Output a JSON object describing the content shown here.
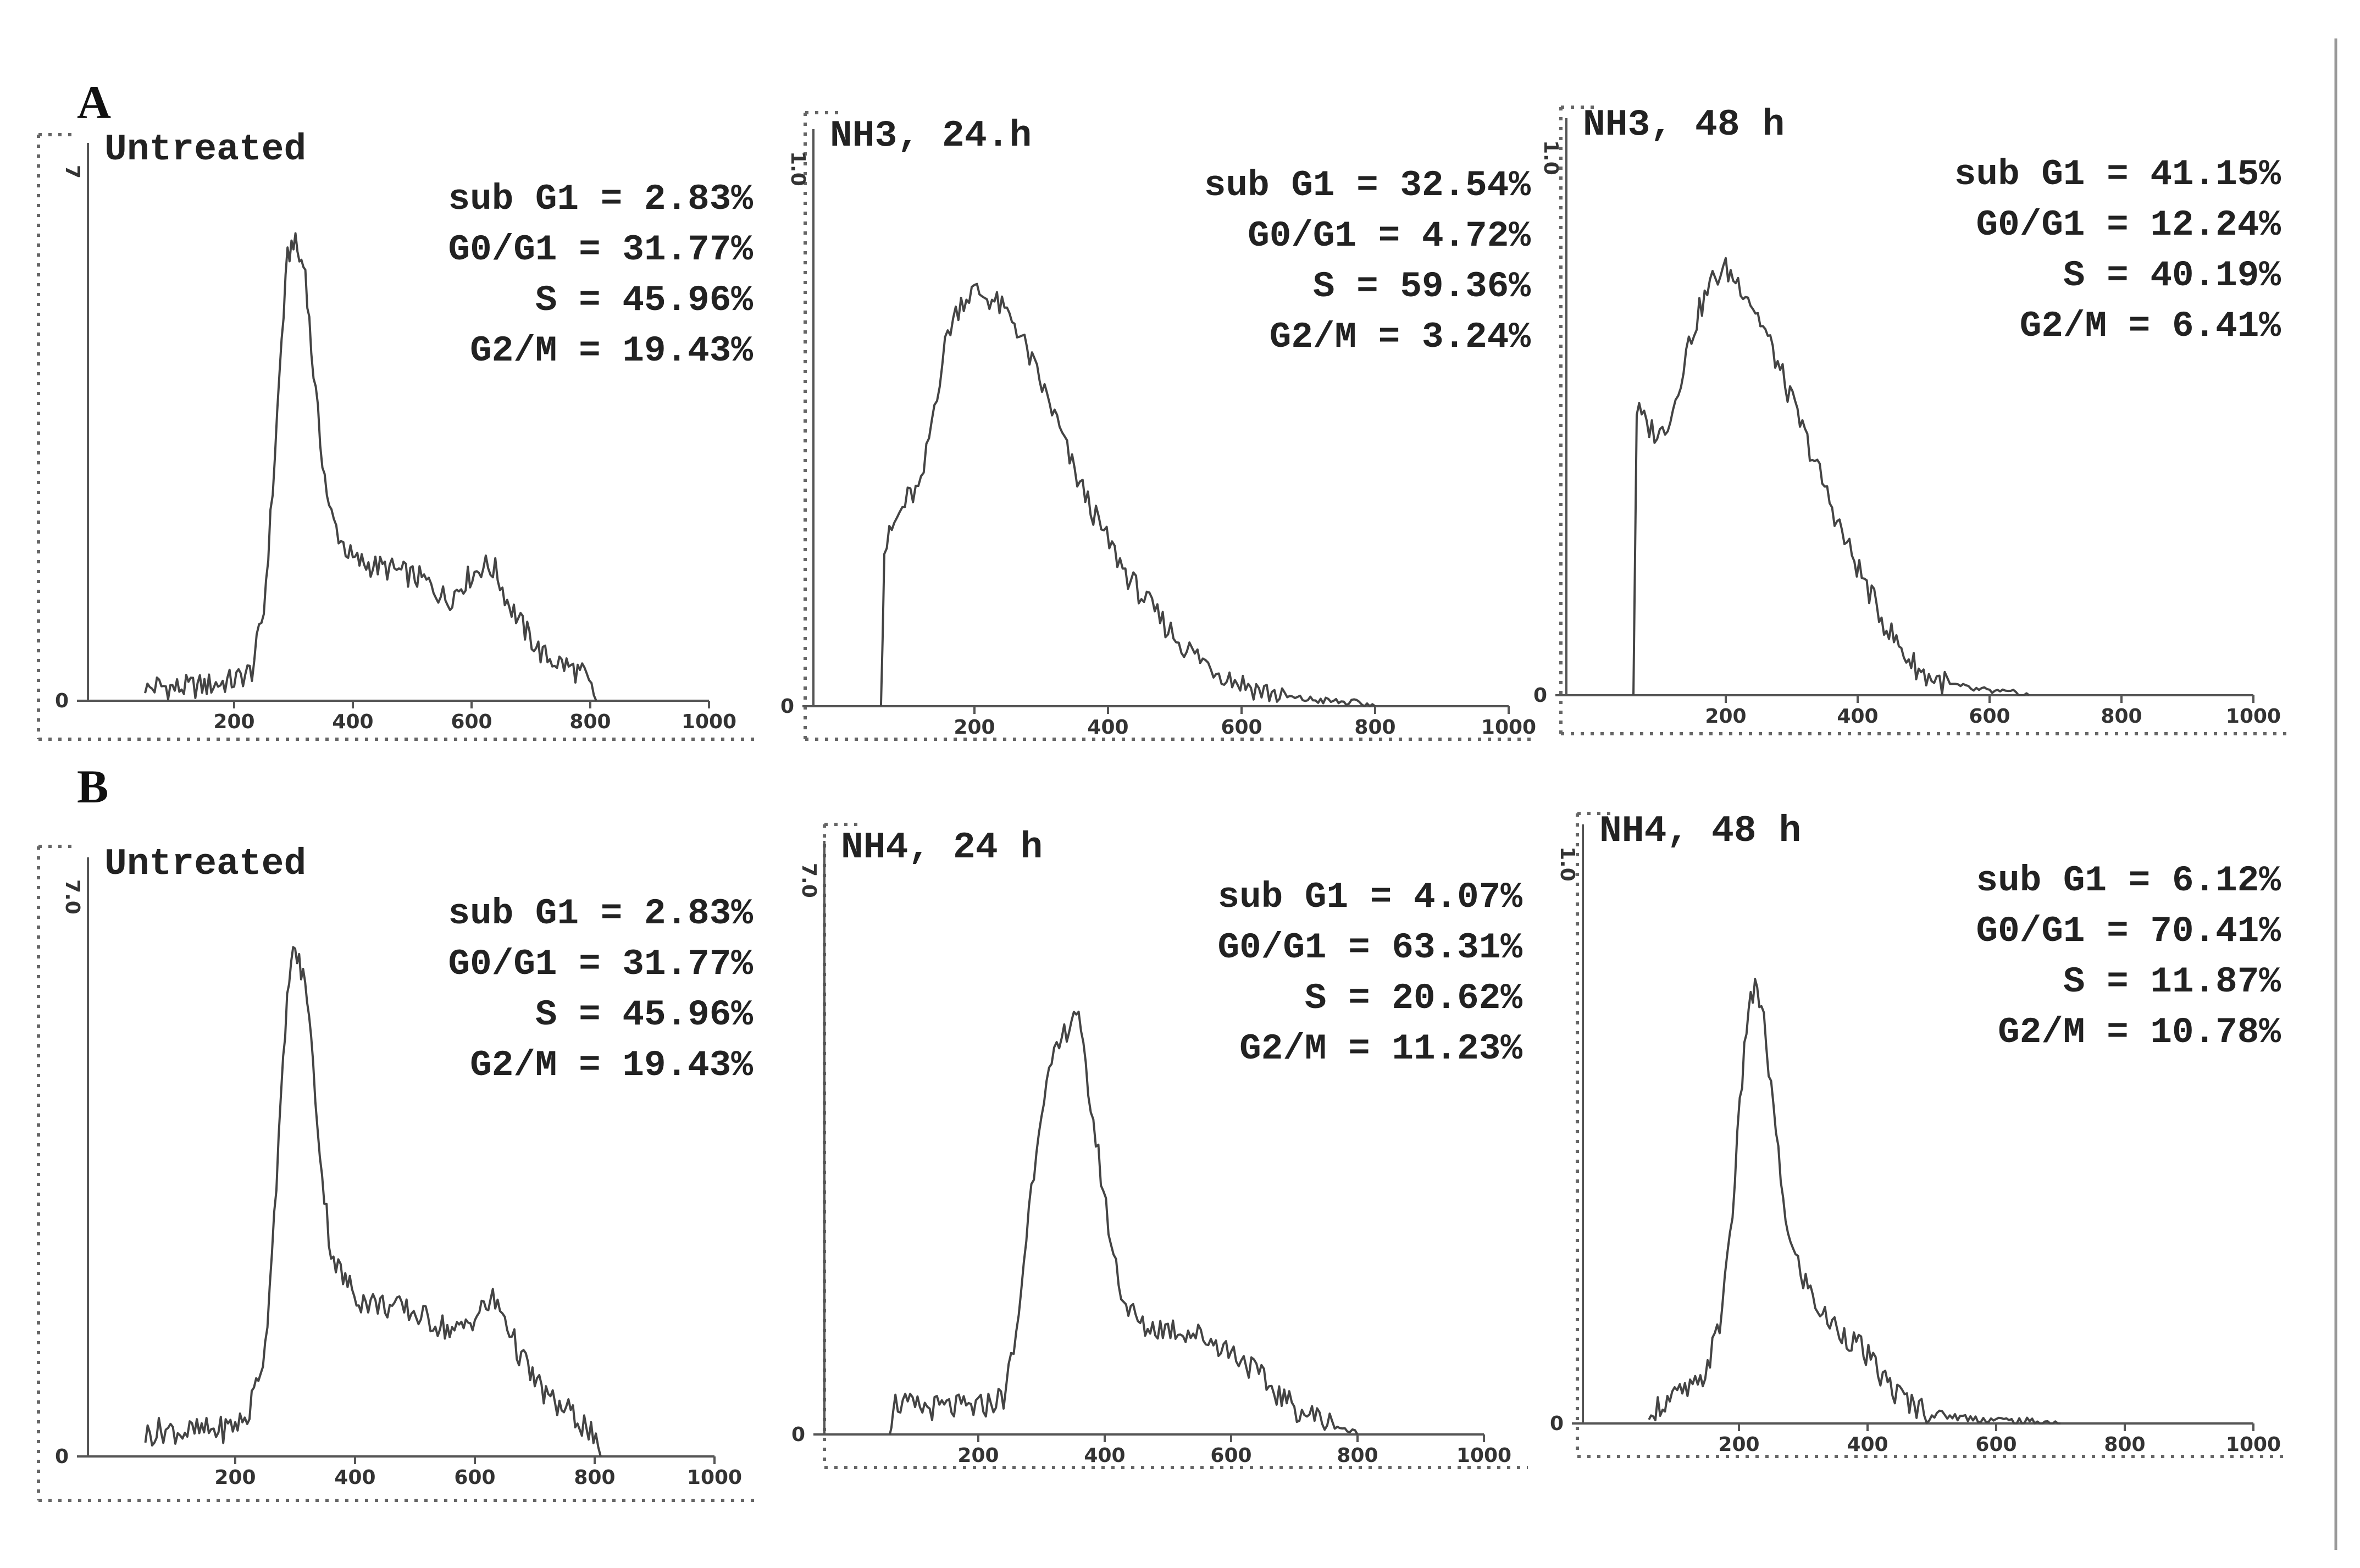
{
  "panel_labels": [
    "A",
    "B"
  ],
  "chart_data": [
    {
      "type": "histogram",
      "title": "Untreated",
      "stats": [
        {
          "label": "sub G1",
          "value": "2.83%"
        },
        {
          "label": "G0/G1",
          "value": "31.77%"
        },
        {
          "label": "S",
          "value": "45.96%"
        },
        {
          "label": "G2/M",
          "value": "19.43%"
        }
      ],
      "y_tick": "7",
      "y_zero": "0",
      "x_ticks": [
        "200",
        "400",
        "600",
        "800",
        "1000"
      ],
      "xlim": [
        0,
        1000
      ],
      "ylim": [
        0,
        1
      ],
      "profile": [
        [
          50,
          0.02
        ],
        [
          70,
          0.03
        ],
        [
          100,
          0.025
        ],
        [
          150,
          0.03
        ],
        [
          200,
          0.04
        ],
        [
          230,
          0.06
        ],
        [
          250,
          0.18
        ],
        [
          265,
          0.42
        ],
        [
          280,
          0.72
        ],
        [
          290,
          0.88
        ],
        [
          300,
          0.92
        ],
        [
          310,
          0.88
        ],
        [
          320,
          0.86
        ],
        [
          330,
          0.7
        ],
        [
          345,
          0.52
        ],
        [
          360,
          0.38
        ],
        [
          380,
          0.32
        ],
        [
          400,
          0.28
        ],
        [
          430,
          0.27
        ],
        [
          470,
          0.26
        ],
        [
          520,
          0.24
        ],
        [
          560,
          0.2
        ],
        [
          590,
          0.24
        ],
        [
          620,
          0.27
        ],
        [
          640,
          0.26
        ],
        [
          660,
          0.2
        ],
        [
          690,
          0.14
        ],
        [
          720,
          0.09
        ],
        [
          760,
          0.07
        ],
        [
          790,
          0.05
        ],
        [
          810,
          0.0
        ]
      ]
    },
    {
      "type": "histogram",
      "title": "NH3, 24.h",
      "stats": [
        {
          "label": "sub G1",
          "value": "32.54%"
        },
        {
          "label": "G0/G1",
          "value": "4.72%"
        },
        {
          "label": "S",
          "value": "59.36%"
        },
        {
          "label": "G2/M",
          "value": "3.24%"
        }
      ],
      "y_tick": "1.0",
      "y_zero": "0",
      "x_ticks": [
        "200",
        "400",
        "600",
        "800",
        "1000"
      ],
      "xlim": [
        0,
        1000
      ],
      "ylim": [
        0,
        1
      ],
      "profile": [
        [
          60,
          0.0
        ],
        [
          65,
          0.3
        ],
        [
          80,
          0.35
        ],
        [
          100,
          0.4
        ],
        [
          120,
          0.42
        ],
        [
          140,
          0.58
        ],
        [
          160,
          0.72
        ],
        [
          180,
          0.78
        ],
        [
          200,
          0.8
        ],
        [
          230,
          0.78
        ],
        [
          260,
          0.74
        ],
        [
          290,
          0.65
        ],
        [
          320,
          0.56
        ],
        [
          350,
          0.45
        ],
        [
          390,
          0.34
        ],
        [
          430,
          0.25
        ],
        [
          470,
          0.18
        ],
        [
          510,
          0.12
        ],
        [
          550,
          0.08
        ],
        [
          590,
          0.05
        ],
        [
          630,
          0.03
        ],
        [
          680,
          0.015
        ],
        [
          730,
          0.01
        ],
        [
          780,
          0.005
        ],
        [
          800,
          0.0
        ]
      ]
    },
    {
      "type": "histogram",
      "title": "NH3, 48 h",
      "stats": [
        {
          "label": "sub G1",
          "value": "41.15%"
        },
        {
          "label": "G0/G1",
          "value": "12.24%"
        },
        {
          "label": "S",
          "value": "40.19%"
        },
        {
          "label": "G2/M",
          "value": "6.41%"
        }
      ],
      "y_tick": "1.0",
      "y_zero": "0",
      "x_ticks": [
        "200",
        "400",
        "600",
        "800",
        "1000"
      ],
      "xlim": [
        0,
        1000
      ],
      "ylim": [
        0,
        1
      ],
      "profile": [
        [
          60,
          0.0
        ],
        [
          65,
          0.55
        ],
        [
          80,
          0.52
        ],
        [
          100,
          0.5
        ],
        [
          120,
          0.55
        ],
        [
          140,
          0.66
        ],
        [
          160,
          0.74
        ],
        [
          180,
          0.8
        ],
        [
          200,
          0.82
        ],
        [
          230,
          0.78
        ],
        [
          260,
          0.7
        ],
        [
          290,
          0.6
        ],
        [
          320,
          0.5
        ],
        [
          350,
          0.4
        ],
        [
          380,
          0.3
        ],
        [
          410,
          0.22
        ],
        [
          440,
          0.14
        ],
        [
          470,
          0.08
        ],
        [
          500,
          0.04
        ],
        [
          540,
          0.02
        ],
        [
          580,
          0.01
        ],
        [
          620,
          0.005
        ],
        [
          660,
          0.0
        ]
      ]
    },
    {
      "type": "histogram",
      "title": "Untreated",
      "stats": [
        {
          "label": "sub G1",
          "value": "2.83%"
        },
        {
          "label": "G0/G1",
          "value": "31.77%"
        },
        {
          "label": "S",
          "value": "45.96%"
        },
        {
          "label": "G2/M",
          "value": "19.43%"
        }
      ],
      "y_tick": "7.0",
      "y_zero": "0",
      "x_ticks": [
        "200",
        "400",
        "600",
        "800",
        "1000"
      ],
      "xlim": [
        0,
        1000
      ],
      "ylim": [
        0,
        1
      ],
      "profile": [
        [
          50,
          0.04
        ],
        [
          80,
          0.05
        ],
        [
          120,
          0.045
        ],
        [
          180,
          0.05
        ],
        [
          220,
          0.07
        ],
        [
          250,
          0.2
        ],
        [
          265,
          0.45
        ],
        [
          280,
          0.72
        ],
        [
          290,
          0.9
        ],
        [
          300,
          0.94
        ],
        [
          310,
          0.9
        ],
        [
          320,
          0.86
        ],
        [
          330,
          0.72
        ],
        [
          345,
          0.52
        ],
        [
          360,
          0.38
        ],
        [
          380,
          0.33
        ],
        [
          410,
          0.29
        ],
        [
          450,
          0.28
        ],
        [
          490,
          0.27
        ],
        [
          530,
          0.25
        ],
        [
          570,
          0.23
        ],
        [
          600,
          0.26
        ],
        [
          630,
          0.29
        ],
        [
          650,
          0.26
        ],
        [
          670,
          0.2
        ],
        [
          700,
          0.14
        ],
        [
          730,
          0.1
        ],
        [
          760,
          0.08
        ],
        [
          790,
          0.05
        ],
        [
          810,
          0.0
        ]
      ]
    },
    {
      "type": "histogram",
      "title": "NH4, 24 h",
      "stats": [
        {
          "label": "sub G1",
          "value": "4.07%"
        },
        {
          "label": "G0/G1",
          "value": "63.31%"
        },
        {
          "label": "S",
          "value": "20.62%"
        },
        {
          "label": "G2/M",
          "value": "11.23%"
        }
      ],
      "y_tick": "7.0",
      "y_zero": "0",
      "x_ticks": [
        "200",
        "400",
        "600",
        "800",
        "1000"
      ],
      "xlim": [
        0,
        1000
      ],
      "ylim": [
        0,
        1
      ],
      "profile": [
        [
          60,
          0.0
        ],
        [
          65,
          0.06
        ],
        [
          100,
          0.05
        ],
        [
          150,
          0.05
        ],
        [
          200,
          0.05
        ],
        [
          240,
          0.07
        ],
        [
          260,
          0.18
        ],
        [
          280,
          0.42
        ],
        [
          300,
          0.62
        ],
        [
          320,
          0.7
        ],
        [
          340,
          0.76
        ],
        [
          355,
          0.8
        ],
        [
          370,
          0.68
        ],
        [
          390,
          0.52
        ],
        [
          410,
          0.36
        ],
        [
          430,
          0.25
        ],
        [
          460,
          0.2
        ],
        [
          500,
          0.2
        ],
        [
          540,
          0.19
        ],
        [
          580,
          0.17
        ],
        [
          620,
          0.14
        ],
        [
          660,
          0.09
        ],
        [
          700,
          0.05
        ],
        [
          740,
          0.03
        ],
        [
          780,
          0.01
        ],
        [
          800,
          0.0
        ]
      ]
    },
    {
      "type": "histogram",
      "title": "NH4, 48 h",
      "stats": [
        {
          "label": "sub G1",
          "value": "6.12%"
        },
        {
          "label": "G0/G1",
          "value": "70.41%"
        },
        {
          "label": "S",
          "value": "11.87%"
        },
        {
          "label": "G2/M",
          "value": "10.78%"
        }
      ],
      "y_tick": "1.0",
      "y_zero": "0",
      "x_ticks": [
        "200",
        "400",
        "600",
        "800",
        "1000"
      ],
      "xlim": [
        0,
        1000
      ],
      "ylim": [
        0,
        1
      ],
      "profile": [
        [
          60,
          0.0
        ],
        [
          70,
          0.03
        ],
        [
          100,
          0.05
        ],
        [
          140,
          0.07
        ],
        [
          170,
          0.18
        ],
        [
          190,
          0.4
        ],
        [
          205,
          0.64
        ],
        [
          215,
          0.78
        ],
        [
          225,
          0.8
        ],
        [
          235,
          0.78
        ],
        [
          250,
          0.62
        ],
        [
          265,
          0.45
        ],
        [
          280,
          0.33
        ],
        [
          300,
          0.27
        ],
        [
          330,
          0.2
        ],
        [
          360,
          0.17
        ],
        [
          390,
          0.14
        ],
        [
          420,
          0.09
        ],
        [
          450,
          0.05
        ],
        [
          480,
          0.03
        ],
        [
          520,
          0.015
        ],
        [
          560,
          0.01
        ],
        [
          620,
          0.005
        ],
        [
          700,
          0.0
        ]
      ]
    }
  ]
}
